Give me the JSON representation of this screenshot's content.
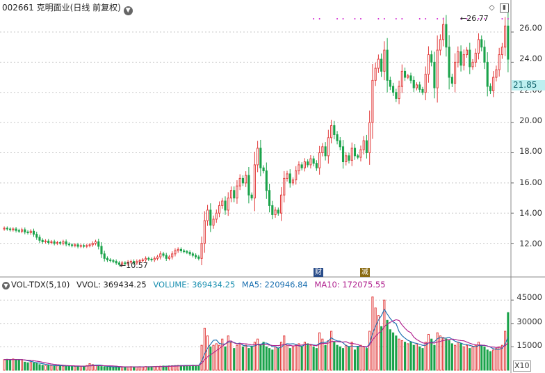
{
  "title": {
    "code": "002661",
    "name": "克明面业",
    "period": "(日线 前复权)",
    "collapse_icon": "chevron-down-icon"
  },
  "toolbar_icons": [
    "diamond-icon",
    "panel-toggle-icon"
  ],
  "price_axis": {
    "ticks": [
      "26.00",
      "24.00",
      "22.00",
      "20.00",
      "18.00",
      "16.00",
      "14.00",
      "12.00"
    ],
    "current_price": "21.85",
    "max_label": "26.77",
    "min_label": "10.57"
  },
  "event_markers": [
    "财",
    "减"
  ],
  "indicator": {
    "name": "VOL-TDX(5,10)",
    "vvol": "VVOL: 369434.25",
    "volume": "VOLUME: 369434.25",
    "ma5": "MA5: 220946.84",
    "ma10": "MA10: 172075.55",
    "colors": {
      "volume": "#1a8fb0",
      "ma5": "#1a6fb0",
      "ma10": "#b0228f"
    }
  },
  "volume_axis": {
    "ticks": [
      "45000",
      "30000",
      "15000"
    ],
    "unit": "X10"
  },
  "chart_data": {
    "type": "candlestick",
    "y_range": [
      10.0,
      27.2
    ],
    "volume_range": [
      0,
      50000
    ],
    "up_color": "#e23c3c",
    "down_color": "#1aa34a",
    "ma_colors": [
      "#1a6fb0",
      "#b0228f",
      "#1aa3a3"
    ],
    "close": [
      13.0,
      12.95,
      12.9,
      12.95,
      12.85,
      12.8,
      12.9,
      12.75,
      12.7,
      12.8,
      12.6,
      12.4,
      12.2,
      12.1,
      12.15,
      12.05,
      12.1,
      12.0,
      12.05,
      12.0,
      12.1,
      11.95,
      11.9,
      11.85,
      11.9,
      11.8,
      11.85,
      11.8,
      11.85,
      11.9,
      12.0,
      12.1,
      11.8,
      11.3,
      11.0,
      10.9,
      10.85,
      10.8,
      10.7,
      10.6,
      10.7,
      10.65,
      10.75,
      10.8,
      10.7,
      10.8,
      10.85,
      10.9,
      11.0,
      10.95,
      10.9,
      11.0,
      11.1,
      11.3,
      11.2,
      11.0,
      11.1,
      11.3,
      11.5,
      11.6,
      11.5,
      11.45,
      11.4,
      11.3,
      11.2,
      11.1,
      11.0,
      12.0,
      13.5,
      14.2,
      13.2,
      13.6,
      14.0,
      14.5,
      14.8,
      14.2,
      15.0,
      15.5,
      15.0,
      15.8,
      16.3,
      16.0,
      16.5,
      15.2,
      15.0,
      17.2,
      18.3,
      17.0,
      16.8,
      15.5,
      14.5,
      13.9,
      14.2,
      14.0,
      15.2,
      16.3,
      16.6,
      16.0,
      16.2,
      16.8,
      17.2,
      17.0,
      17.4,
      17.2,
      17.6,
      17.3,
      17.0,
      18.0,
      18.4,
      17.8,
      19.0,
      19.8,
      19.2,
      18.8,
      18.4,
      17.4,
      17.8,
      17.5,
      18.3,
      17.8,
      17.7,
      18.2,
      18.8,
      18.0,
      20.0,
      22.8,
      23.6,
      24.2,
      23.4,
      24.8,
      22.8,
      22.4,
      22.0,
      21.6,
      22.4,
      23.4,
      23.0,
      23.1,
      22.8,
      22.3,
      22.5,
      22.2,
      22.0,
      23.2,
      24.5,
      24.0,
      22.3,
      24.8,
      25.5,
      26.5,
      25.0,
      23.0,
      22.6,
      24.0,
      24.7,
      23.8,
      24.5,
      24.8,
      23.7,
      24.0,
      24.6,
      25.5,
      25.0,
      24.0,
      22.4,
      22.1,
      23.0,
      23.5,
      24.5,
      25.0,
      26.4,
      24.2
    ],
    "volume": [
      6800,
      7000,
      6500,
      7200,
      6900,
      6600,
      6800,
      5200,
      4800,
      5000,
      4600,
      4500,
      3600,
      3200,
      3000,
      3100,
      3000,
      2900,
      2800,
      3000,
      2600,
      2800,
      2700,
      2500,
      2400,
      2600,
      2500,
      2600,
      3000,
      4200,
      3600,
      2900,
      2800,
      2400,
      2200,
      2100,
      2100,
      2000,
      2200,
      1900,
      2100,
      2000,
      2200,
      2300,
      2100,
      2200,
      2300,
      2200,
      2400,
      2200,
      2300,
      2400,
      2500,
      2600,
      2700,
      2600,
      2800,
      2900,
      3000,
      3100,
      3000,
      2900,
      3100,
      3000,
      3200,
      3100,
      3000,
      16000,
      27000,
      22000,
      15000,
      16000,
      17000,
      16000,
      20000,
      15000,
      22000,
      18000,
      14000,
      16000,
      17000,
      15000,
      16000,
      14000,
      15000,
      18000,
      20000,
      16000,
      18000,
      15000,
      14000,
      13000,
      15000,
      14000,
      18000,
      22000,
      16000,
      14000,
      15000,
      16000,
      17000,
      15000,
      18000,
      17000,
      16000,
      15000,
      14000,
      24000,
      20000,
      16000,
      19000,
      25000,
      18000,
      16000,
      15000,
      14000,
      16000,
      15000,
      18000,
      13000,
      15000,
      16000,
      15000,
      14000,
      25000,
      47000,
      40000,
      35000,
      28000,
      45000,
      32000,
      26000,
      24000,
      22000,
      20000,
      19000,
      18000,
      17000,
      18000,
      16000,
      17000,
      15000,
      14000,
      18000,
      23000,
      20000,
      16000,
      24000,
      22000,
      21000,
      20000,
      19000,
      17000,
      16000,
      18000,
      17000,
      15000,
      16000,
      14000,
      15000,
      16000,
      18000,
      16000,
      15000,
      13000,
      12000,
      13000,
      14000,
      15000,
      16000,
      25000,
      37000
    ]
  }
}
